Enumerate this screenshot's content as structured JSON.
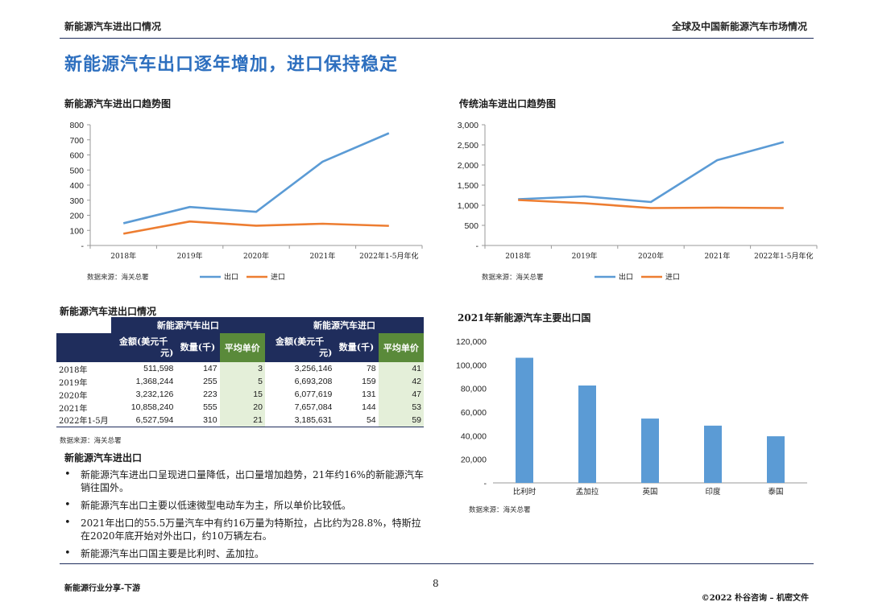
{
  "header": {
    "left": "新能源汽车进出口情况",
    "right": "全球及中国新能源汽车市场情况"
  },
  "page_title": "新能源汽车出口逐年增加，进口保持稳定",
  "charts_titles": {
    "nev_trend": "新能源汽车进出口趋势图",
    "ice_trend": "传统油车进出口趋势图",
    "export_dest": "2021年新能源汽车主要出口国",
    "table": "新能源汽车进出口情况"
  },
  "source_text": "数据来源：海关总署",
  "chart_data": [
    {
      "type": "line",
      "title": "新能源汽车进出口趋势图",
      "categories": [
        "2018年",
        "2019年",
        "2020年",
        "2021年",
        "2022年1-5月年化"
      ],
      "series": [
        {
          "name": "出口",
          "values": [
            147,
            255,
            223,
            555,
            744
          ]
        },
        {
          "name": "进口",
          "values": [
            78,
            159,
            131,
            144,
            130
          ]
        }
      ],
      "ylim": [
        0,
        800
      ],
      "yticks": [
        "-",
        "100",
        "200",
        "300",
        "400",
        "500",
        "600",
        "700",
        "800"
      ],
      "legend": "bottom",
      "colors": {
        "出口": "#5b9bd5",
        "进口": "#ed7d31"
      }
    },
    {
      "type": "line",
      "title": "传统油车进出口趋势图",
      "categories": [
        "2018年",
        "2019年",
        "2020年",
        "2021年",
        "2022年1-5月年化"
      ],
      "series": [
        {
          "name": "出口",
          "values": [
            1150,
            1220,
            1080,
            2120,
            2570
          ]
        },
        {
          "name": "进口",
          "values": [
            1130,
            1050,
            930,
            940,
            930
          ]
        }
      ],
      "ylim": [
        0,
        3000
      ],
      "yticks": [
        "-",
        "500",
        "1,000",
        "1,500",
        "2,000",
        "2,500",
        "3,000"
      ],
      "legend": "bottom",
      "colors": {
        "出口": "#5b9bd5",
        "进口": "#ed7d31"
      }
    },
    {
      "type": "bar",
      "title": "2021年新能源汽车主要出口国",
      "categories": [
        "比利时",
        "孟加拉",
        "英国",
        "印度",
        "泰国"
      ],
      "values": [
        106000,
        82500,
        54500,
        48500,
        39500
      ],
      "ylim": [
        0,
        120000
      ],
      "yticks": [
        "-",
        "20,000",
        "40,000",
        "60,000",
        "80,000",
        "100,000",
        "120,000"
      ],
      "colors": {
        "bar": "#5b9bd5"
      }
    },
    {
      "type": "table",
      "title": "新能源汽车进出口情况",
      "group_headers": [
        "新能源汽车出口",
        "新能源汽车进口"
      ],
      "sub_headers": [
        "金额(美元千元)",
        "数量(千)",
        "平均单价",
        "金额(美元千元)",
        "数量(千)",
        "平均单价"
      ],
      "rows": [
        {
          "label": "2018年",
          "cells": [
            "511,598",
            "147",
            "3",
            "3,256,146",
            "78",
            "41"
          ]
        },
        {
          "label": "2019年",
          "cells": [
            "1,368,244",
            "255",
            "5",
            "6,693,208",
            "159",
            "42"
          ]
        },
        {
          "label": "2020年",
          "cells": [
            "3,232,126",
            "223",
            "15",
            "6,077,619",
            "131",
            "47"
          ]
        },
        {
          "label": "2021年",
          "cells": [
            "10,858,240",
            "555",
            "20",
            "7,657,084",
            "144",
            "53"
          ]
        },
        {
          "label": "2022年1-5月",
          "cells": [
            "6,527,594",
            "310",
            "21",
            "3,185,631",
            "54",
            "59"
          ]
        }
      ]
    }
  ],
  "table_headers": {
    "export_group": "新能源汽车出口",
    "import_group": "新能源汽车进口",
    "amount_line1": "金额(美元千",
    "amount_line2": "元)",
    "qty": "数量(千)",
    "avg": "平均单价"
  },
  "legend": {
    "export": "出口",
    "import": "进口"
  },
  "export_section": {
    "title": "新能源汽车进出口",
    "bullets": [
      "新能源汽车进出口呈现进口量降低，出口量增加趋势，21年约16%的新能源汽车销往国外。",
      "新能源汽车出口主要以低速微型电动车为主，所以单价比较低。",
      "2021年出口的55.5万量汽车中有约16万量为特斯拉，占比约为28.8%，特斯拉在2020年底开始对外出口，约10万辆左右。",
      "新能源汽车出口国主要是比利时、孟加拉。"
    ]
  },
  "footer": {
    "left": "新能源行业分享-下游",
    "page": "8",
    "right": "©2022 朴谷咨询 – 机密文件"
  }
}
